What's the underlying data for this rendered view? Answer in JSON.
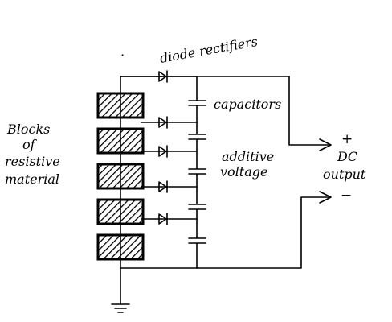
{
  "diagram": {
    "labels": {
      "diode_rectifiers": "diode rectifiers",
      "capacitors": "capacitors",
      "additive_line1": "additive",
      "additive_line2": "voltage",
      "blocks_line1": "Blocks",
      "blocks_line2": "of",
      "blocks_line3": "resistive",
      "blocks_line4": "material",
      "output_plus": "+",
      "output_line1": "DC",
      "output_line2": "output",
      "output_minus": "−"
    },
    "counts": {
      "resistive_blocks": 5,
      "diodes": 5,
      "capacitors": 5
    },
    "colors": {
      "ink": "#000000",
      "paper": "#ffffff"
    },
    "icons": {
      "diode": "diode-icon",
      "capacitor": "capacitor-icon",
      "ground": "ground-icon",
      "arrow": "arrow-icon"
    }
  }
}
